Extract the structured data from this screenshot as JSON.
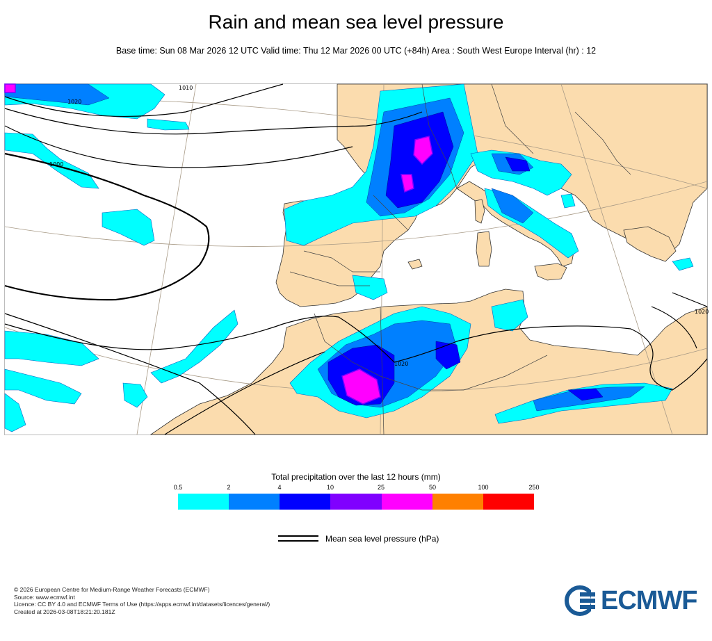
{
  "header": {
    "title": "Rain and mean sea level pressure",
    "subtitle": "Base time: Sun 08 Mar 2026 12 UTC Valid time: Thu 12 Mar 2026 00 UTC (+84h) Area : South West Europe Interval (hr) : 12"
  },
  "map": {
    "isobar_labels": [
      "1010",
      "1000",
      "1020",
      "1020",
      "1020"
    ],
    "colors": {
      "land": "#fbdcae",
      "sea": "#ffffff",
      "coast": "#333333"
    }
  },
  "legend": {
    "title": "Total precipitation over the last 12 hours (mm)",
    "ticks": [
      "0.5",
      "2",
      "4",
      "10",
      "25",
      "50",
      "100",
      "250"
    ],
    "colors": [
      "#00ffff",
      "#0080ff",
      "#0000ff",
      "#8000ff",
      "#ff00ff",
      "#ff8000",
      "#ff0000"
    ],
    "mslp_label": "Mean sea level pressure (hPa)"
  },
  "footer": {
    "lines": [
      "© 2026 European Centre for Medium-Range Weather Forecasts (ECMWF)",
      "Source: www.ecmwf.int",
      "Licence: CC BY 4.0 and ECMWF Terms of Use (https://apps.ecmwf.int/datasets/licences/general/)",
      "Created at 2026-03-08T18:21:20.181Z"
    ],
    "logo_text": "ECMWF",
    "logo_color": "#1a5a96"
  }
}
